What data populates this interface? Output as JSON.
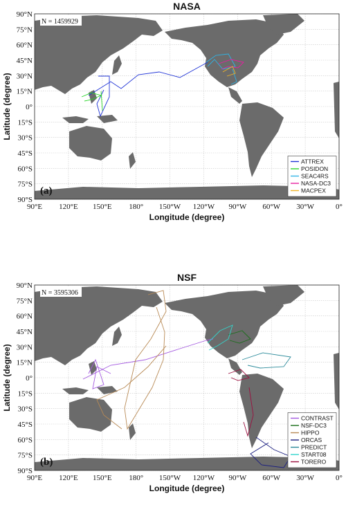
{
  "panels": [
    {
      "id": "a",
      "title": "NASA",
      "count_label": "N = 1459929",
      "panel_label": "(a)",
      "xlabel": "Longitude (degree)",
      "ylabel": "Latitude (degree)",
      "x_ticks": [
        "90°E",
        "120°E",
        "150°E",
        "180°",
        "150°W",
        "120°W",
        "90°W",
        "60°W",
        "30°W",
        "0°"
      ],
      "y_ticks": [
        "90°N",
        "75°N",
        "60°N",
        "45°N",
        "30°N",
        "15°N",
        "0°",
        "15°S",
        "30°S",
        "45°S",
        "60°S",
        "75°S",
        "90°S"
      ],
      "legend": [
        {
          "name": "ATTREX",
          "color": "#1f33d6"
        },
        {
          "name": "POSIDON",
          "color": "#29d629"
        },
        {
          "name": "SEAC4RS",
          "color": "#2fb4e6"
        },
        {
          "name": "NASA-DC3",
          "color": "#e61fa0"
        },
        {
          "name": "MACPEX",
          "color": "#f0b428"
        }
      ]
    },
    {
      "id": "b",
      "title": "NSF",
      "count_label": "N = 3595306",
      "panel_label": "(b)",
      "xlabel": "Longitude (degree)",
      "ylabel": "Latitude (degree)",
      "x_ticks": [
        "90°E",
        "120°E",
        "150°E",
        "180°",
        "150°W",
        "120°W",
        "90°W",
        "60°W",
        "30°W",
        "0°"
      ],
      "y_ticks": [
        "90°N",
        "75°N",
        "60°N",
        "45°N",
        "30°N",
        "15°N",
        "0°",
        "15°S",
        "30°S",
        "45°S",
        "60°S",
        "75°S",
        "90°S"
      ],
      "legend": [
        {
          "name": "CONTRAST",
          "color": "#a45ae0"
        },
        {
          "name": "NSF-DC3",
          "color": "#1a6e1a"
        },
        {
          "name": "HIPPO",
          "color": "#b88a55"
        },
        {
          "name": "ORCAS",
          "color": "#1b1f80"
        },
        {
          "name": "PREDICT",
          "color": "#2a8a9a"
        },
        {
          "name": "START08",
          "color": "#33d6cc"
        },
        {
          "name": "TORERO",
          "color": "#9c1040"
        }
      ]
    }
  ]
}
